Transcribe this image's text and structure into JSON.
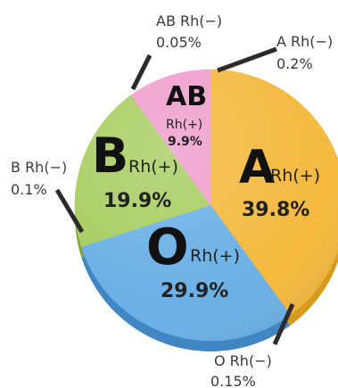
{
  "chart_data": {
    "type": "pie",
    "title": "",
    "slices": [
      {
        "label_main": "A",
        "label_rh": "Rh(+)",
        "value": 39.8,
        "value_label": "39.8%",
        "color": "#f4b93e",
        "edge": "#d89a1e"
      },
      {
        "label_main": "A Rh(−)",
        "value": 0.2,
        "value_label": "0.2%",
        "color": "#f4b93e",
        "edge": "#d89a1e"
      },
      {
        "label_main": "O",
        "label_rh": "Rh(+)",
        "value": 29.9,
        "value_label": "29.9%",
        "color": "#6ab0e6",
        "edge": "#3f86c2"
      },
      {
        "label_main": "O Rh(−)",
        "value": 0.15,
        "value_label": "0.15%",
        "color": "#6ab0e6",
        "edge": "#3f86c2"
      },
      {
        "label_main": "B",
        "label_rh": "Rh(+)",
        "value": 19.9,
        "value_label": "19.9%",
        "color": "#a9cd62",
        "edge": "#7fa63a"
      },
      {
        "label_main": "B Rh(−)",
        "value": 0.1,
        "value_label": "0.1%",
        "color": "#a9cd62",
        "edge": "#7fa63a"
      },
      {
        "label_main": "AB",
        "label_rh": "Rh(+)",
        "value": 9.9,
        "value_label": "9.9%",
        "color": "#ef9fcd",
        "edge": "#cf72a8"
      },
      {
        "label_main": "AB Rh(−)",
        "value": 0.05,
        "value_label": "0.05%",
        "color": "#ef9fcd",
        "edge": "#cf72a8"
      }
    ],
    "legend": "none"
  }
}
